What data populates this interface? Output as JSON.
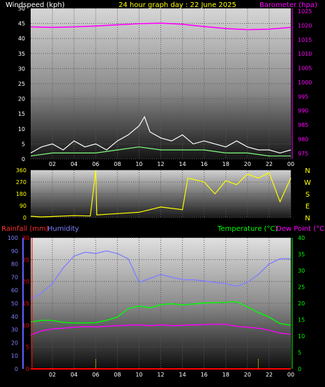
{
  "header": {
    "wind_label": "Windspeed (kph)",
    "title": "24 hour graph day : 22 June 2025",
    "baro_label": "Barometer (hpa)"
  },
  "compass": [
    "N",
    "W",
    "S",
    "E",
    "N"
  ],
  "lower_header": {
    "rain_label": "Rainfall (mm)",
    "humidity_label": "Humidity",
    "temp_label": "Temperature (°C)",
    "dew_label": "Dew Point (°C)"
  },
  "colors": {
    "wind_gust": "#ffffff",
    "wind_avg": "#7fff7f",
    "barometer": "#ff00ff",
    "direction": "#ffff00",
    "humidity": "#8080ff",
    "temperature": "#00ff00",
    "dewpoint": "#ff00ff",
    "rainfall": "#ff0000"
  },
  "chart_data": [
    {
      "id": "wind_baro",
      "type": "line",
      "title": "24 hour graph day : 22 June 2025",
      "xlabel": "",
      "x_ticks": [
        "02",
        "04",
        "06",
        "08",
        "10",
        "12",
        "14",
        "16",
        "18",
        "20",
        "22",
        "00"
      ],
      "x_range": [
        0,
        24
      ],
      "y_left": {
        "label": "Windspeed (kph)",
        "range": [
          0,
          50
        ],
        "ticks": [
          0,
          5,
          10,
          15,
          20,
          25,
          30,
          35,
          40,
          45,
          50
        ]
      },
      "y_right": {
        "label": "Barometer (hpa)",
        "range": [
          973,
          1026
        ],
        "ticks": [
          975,
          980,
          985,
          990,
          995,
          1000,
          1005,
          1010,
          1015,
          1020,
          1025
        ]
      },
      "series": [
        {
          "key": "gust",
          "axis": "left",
          "values": [
            [
              0,
              2
            ],
            [
              1,
              4
            ],
            [
              2,
              5
            ],
            [
              3,
              3
            ],
            [
              4,
              6
            ],
            [
              5,
              4
            ],
            [
              6,
              5
            ],
            [
              7,
              3
            ],
            [
              8,
              6
            ],
            [
              9,
              8
            ],
            [
              10,
              11
            ],
            [
              10.5,
              14
            ],
            [
              11,
              9
            ],
            [
              12,
              7
            ],
            [
              13,
              6
            ],
            [
              14,
              8
            ],
            [
              15,
              5
            ],
            [
              16,
              6
            ],
            [
              17,
              5
            ],
            [
              18,
              4
            ],
            [
              19,
              6
            ],
            [
              20,
              4
            ],
            [
              21,
              3
            ],
            [
              22,
              3
            ],
            [
              23,
              2
            ],
            [
              24,
              3
            ]
          ]
        },
        {
          "key": "average",
          "axis": "left",
          "values": [
            [
              0,
              1
            ],
            [
              2,
              2
            ],
            [
              4,
              2
            ],
            [
              6,
              2
            ],
            [
              8,
              3
            ],
            [
              10,
              4
            ],
            [
              12,
              3
            ],
            [
              14,
              3
            ],
            [
              16,
              3
            ],
            [
              18,
              2
            ],
            [
              20,
              2
            ],
            [
              22,
              1
            ],
            [
              24,
              1
            ]
          ]
        },
        {
          "key": "barometer",
          "axis": "right",
          "values": [
            [
              0,
              1019.5
            ],
            [
              2,
              1019.3
            ],
            [
              4,
              1019.5
            ],
            [
              6,
              1019.8
            ],
            [
              8,
              1020.2
            ],
            [
              10,
              1020.6
            ],
            [
              12,
              1020.8
            ],
            [
              14,
              1020.4
            ],
            [
              16,
              1019.6
            ],
            [
              18,
              1018.9
            ],
            [
              20,
              1018.5
            ],
            [
              22,
              1018.7
            ],
            [
              24,
              1019.3
            ]
          ]
        }
      ]
    },
    {
      "id": "direction",
      "type": "line",
      "x_ticks": [
        "02",
        "04",
        "06",
        "08",
        "10",
        "12",
        "14",
        "16",
        "18",
        "20",
        "22",
        "00"
      ],
      "x_range": [
        0,
        24
      ],
      "y_left": {
        "label": "",
        "range": [
          0,
          360
        ],
        "ticks": [
          0,
          90,
          180,
          270,
          360
        ]
      },
      "series": [
        {
          "key": "direction",
          "axis": "left",
          "values": [
            [
              0,
              10
            ],
            [
              1,
              5
            ],
            [
              2,
              8
            ],
            [
              4,
              15
            ],
            [
              5.5,
              12
            ],
            [
              6,
              360
            ],
            [
              6.1,
              20
            ],
            [
              8,
              30
            ],
            [
              10,
              40
            ],
            [
              12,
              80
            ],
            [
              14,
              60
            ],
            [
              14.5,
              300
            ],
            [
              16,
              270
            ],
            [
              17,
              180
            ],
            [
              18,
              280
            ],
            [
              19,
              250
            ],
            [
              20,
              330
            ],
            [
              21,
              300
            ],
            [
              22,
              340
            ],
            [
              23,
              120
            ],
            [
              24,
              300
            ]
          ]
        }
      ]
    },
    {
      "id": "temp_humidity_rain",
      "type": "line",
      "x_ticks": [
        "02",
        "04",
        "06",
        "08",
        "10",
        "12",
        "14",
        "16",
        "18",
        "20",
        "22",
        "00"
      ],
      "x_range": [
        0,
        24
      ],
      "y_humidity": {
        "label": "Humidity",
        "range": [
          0,
          100
        ],
        "ticks": [
          0,
          10,
          20,
          30,
          40,
          50,
          60,
          70,
          80,
          90,
          100
        ]
      },
      "y_rain": {
        "label": "Rainfall (mm)",
        "range": [
          0,
          30
        ],
        "ticks": [
          0,
          5,
          10,
          15,
          20,
          25,
          30
        ]
      },
      "y_right": {
        "label": "Temperature (°C)",
        "range": [
          0,
          40
        ],
        "ticks": [
          0,
          5,
          10,
          15,
          20,
          25,
          30,
          35,
          40
        ]
      },
      "series": [
        {
          "key": "humidity",
          "axis": "humidity",
          "values": [
            [
              0,
              53
            ],
            [
              1,
              58
            ],
            [
              2,
              65
            ],
            [
              3,
              77
            ],
            [
              4,
              86
            ],
            [
              5,
              89
            ],
            [
              6,
              88
            ],
            [
              7,
              90
            ],
            [
              8,
              88
            ],
            [
              9,
              84
            ],
            [
              10,
              66
            ],
            [
              11,
              69
            ],
            [
              12,
              72
            ],
            [
              13,
              70
            ],
            [
              14,
              68
            ],
            [
              15,
              68
            ],
            [
              16,
              67
            ],
            [
              17,
              66
            ],
            [
              18,
              65
            ],
            [
              19,
              63
            ],
            [
              20,
              66
            ],
            [
              21,
              72
            ],
            [
              22,
              80
            ],
            [
              23,
              84
            ],
            [
              24,
              84
            ]
          ]
        },
        {
          "key": "temperature",
          "axis": "right",
          "values": [
            [
              0,
              14.3
            ],
            [
              1,
              14.8
            ],
            [
              2,
              14.8
            ],
            [
              3,
              14.2
            ],
            [
              4,
              14.0
            ],
            [
              5,
              14.0
            ],
            [
              6,
              14.1
            ],
            [
              7,
              14.8
            ],
            [
              8,
              15.8
            ],
            [
              9,
              18.4
            ],
            [
              10,
              19.2
            ],
            [
              11,
              18.6
            ],
            [
              12,
              19.6
            ],
            [
              13,
              19.9
            ],
            [
              14,
              19.5
            ],
            [
              15,
              19.8
            ],
            [
              16,
              20.1
            ],
            [
              17,
              20.2
            ],
            [
              18,
              20.3
            ],
            [
              19,
              20.5
            ],
            [
              20,
              18.9
            ],
            [
              21,
              17.2
            ],
            [
              22,
              15.8
            ],
            [
              23,
              13.8
            ],
            [
              24,
              13.3
            ]
          ]
        },
        {
          "key": "dewpoint",
          "axis": "right",
          "values": [
            [
              0,
              10.3
            ],
            [
              1,
              11.6
            ],
            [
              2,
              12.2
            ],
            [
              3,
              12.4
            ],
            [
              4,
              12.7
            ],
            [
              5,
              12.9
            ],
            [
              6,
              12.8
            ],
            [
              7,
              13.0
            ],
            [
              8,
              13.2
            ],
            [
              9,
              13.3
            ],
            [
              10,
              13.4
            ],
            [
              11,
              13.2
            ],
            [
              12,
              13.4
            ],
            [
              13,
              13.2
            ],
            [
              14,
              13.3
            ],
            [
              15,
              13.4
            ],
            [
              16,
              13.5
            ],
            [
              17,
              13.6
            ],
            [
              18,
              13.6
            ],
            [
              19,
              13.0
            ],
            [
              20,
              12.7
            ],
            [
              21,
              12.4
            ],
            [
              22,
              11.8
            ],
            [
              23,
              10.9
            ],
            [
              24,
              10.6
            ]
          ]
        },
        {
          "key": "rainfall",
          "axis": "rain",
          "values": [
            [
              0,
              0
            ],
            [
              24,
              0
            ]
          ]
        }
      ],
      "markers": [
        6,
        21
      ]
    }
  ]
}
